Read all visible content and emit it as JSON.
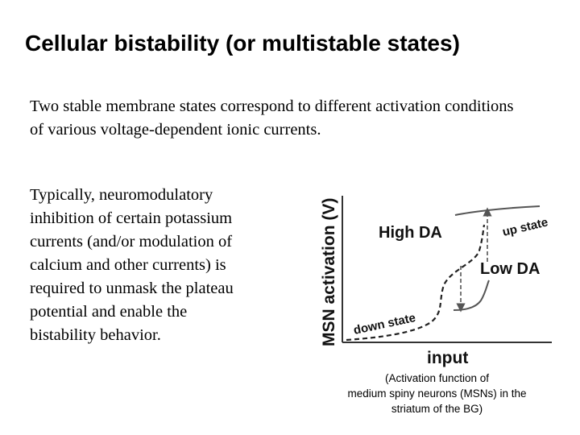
{
  "slide": {
    "title": "Cellular bistability (or multistable states)",
    "paragraph_1": "Two stable membrane states correspond to different activation conditions of various voltage-dependent ionic currents.",
    "paragraph_2_lines": [
      "Typically, neuromodulatory",
      "inhibition of certain potassium",
      "currents (and/or modulation of",
      "calcium and other currents) is",
      "required to unmask the plateau",
      "potential and enable the",
      "bistability behavior."
    ]
  },
  "figure": {
    "ylabel": "MSN activation (V)",
    "xlabel": "input",
    "label_high_da": "High DA",
    "label_low_da": "Low DA",
    "label_up_state": "up state",
    "label_down_state": "down state",
    "caption_lines": [
      "(Activation function of",
      "medium spiny neurons (MSNs) in the",
      "striatum of the BG)"
    ],
    "line_color": "#555555"
  }
}
